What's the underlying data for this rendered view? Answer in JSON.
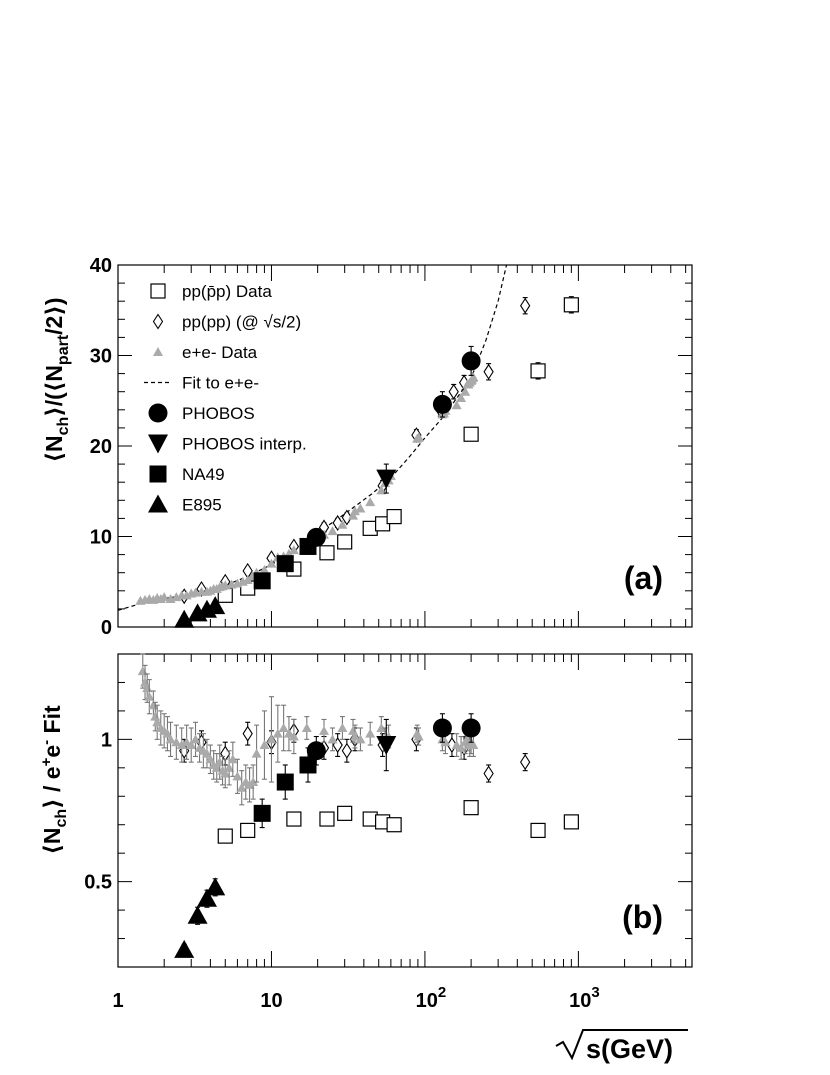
{
  "chart_data": [
    {
      "type": "scatter",
      "panel_label": "(a)",
      "x_scale": "log",
      "xlim": [
        1,
        5500
      ],
      "ylim": [
        0,
        40
      ],
      "yticks": [
        0,
        10,
        20,
        30,
        40
      ],
      "legend": {
        "placement": "top-left",
        "entries": [
          {
            "label": "pp(p̄p) Data",
            "marker": "open-square"
          },
          {
            "label": "pp(pp) (@ √s/2)",
            "marker": "open-diamond"
          },
          {
            "label": "e+e- Data",
            "marker": "gray-triangle"
          },
          {
            "label": "Fit to e+e-",
            "marker": "dashed-line"
          },
          {
            "label": "PHOBOS",
            "marker": "filled-circle"
          },
          {
            "label": "PHOBOS interp.",
            "marker": "filled-down-triangle"
          },
          {
            "label": "NA49",
            "marker": "filled-square"
          },
          {
            "label": "E895",
            "marker": "filled-triangle"
          }
        ]
      },
      "series": [
        {
          "name": "pp(p̄p) Data",
          "marker": "open-square",
          "x": [
            5.0,
            7.0,
            14.0,
            23.0,
            30.0,
            44.0,
            53.0,
            63.0,
            200.0,
            546.0,
            900.0
          ],
          "y": [
            3.5,
            4.3,
            6.4,
            8.2,
            9.4,
            10.9,
            11.4,
            12.2,
            21.3,
            28.3,
            35.6
          ],
          "err": [
            0.3,
            0.3,
            0.4,
            0.4,
            0.4,
            0.5,
            0.5,
            0.5,
            0.6,
            0.9,
            0.9
          ]
        },
        {
          "name": "pp(pp) (@ √s/2)",
          "marker": "open-diamond",
          "x": [
            2.7,
            3.5,
            5.0,
            7.0,
            10.0,
            14.0,
            19.0,
            22.0,
            27.0,
            31.0,
            53.0,
            88.0,
            126.0,
            154.0,
            180.0,
            260.0,
            450.0
          ],
          "y": [
            3.4,
            4.2,
            5.0,
            6.2,
            7.6,
            8.9,
            9.8,
            11.0,
            11.5,
            12.1,
            15.6,
            21.2,
            24.0,
            26.0,
            27.0,
            28.2,
            35.5
          ],
          "err": [
            0.3,
            0.3,
            0.3,
            0.4,
            0.4,
            0.4,
            0.4,
            0.5,
            0.5,
            0.5,
            0.6,
            0.6,
            0.7,
            0.8,
            0.8,
            0.9,
            0.9
          ]
        },
        {
          "name": "e+e- Data",
          "marker": "gray-triangle",
          "x": [
            1.4,
            1.5,
            1.6,
            1.7,
            1.8,
            1.9,
            2.0,
            2.2,
            2.4,
            2.6,
            2.8,
            3.0,
            3.2,
            3.5,
            3.8,
            4.0,
            4.2,
            4.4,
            4.6,
            4.8,
            5.0,
            5.5,
            6.0,
            6.5,
            7.0,
            7.5,
            8.0,
            9.0,
            10.0,
            11.0,
            12.0,
            13.0,
            14.0,
            17.0,
            22.0,
            25.0,
            29.0,
            34.0,
            35.0,
            38.0,
            44.0,
            52.0,
            55.0,
            58.0,
            60.0,
            89.0,
            91.0,
            91.2,
            130.0,
            133.0,
            136.0,
            161.0,
            172.0,
            183.0,
            189.0,
            192.0,
            196.0,
            200.0,
            202.0,
            205.0,
            207.0
          ],
          "y": [
            2.9,
            3.0,
            3.1,
            3.0,
            3.2,
            3.1,
            3.3,
            3.1,
            3.3,
            3.5,
            3.5,
            3.7,
            3.8,
            3.9,
            3.9,
            4.0,
            4.2,
            4.2,
            4.4,
            4.5,
            4.6,
            4.7,
            4.8,
            5.0,
            5.2,
            5.6,
            6.0,
            6.3,
            7.0,
            7.7,
            7.8,
            8.1,
            8.5,
            9.0,
            10.2,
            10.6,
            11.3,
            12.3,
            12.8,
            13.1,
            13.8,
            15.1,
            15.9,
            16.2,
            16.7,
            20.8,
            20.9,
            21.0,
            23.5,
            23.6,
            23.9,
            24.5,
            25.3,
            26.0,
            26.8,
            26.8,
            27.0,
            27.2,
            27.3,
            27.5,
            27.6
          ]
        },
        {
          "name": "PHOBOS",
          "marker": "filled-circle",
          "x": [
            19.6,
            130.0,
            200.0
          ],
          "y": [
            9.9,
            24.6,
            29.4
          ],
          "err": [
            0.6,
            1.4,
            1.6
          ]
        },
        {
          "name": "PHOBOS interp.",
          "marker": "filled-down-triangle",
          "x": [
            56.0
          ],
          "y": [
            16.4
          ],
          "err": [
            1.6
          ]
        },
        {
          "name": "NA49",
          "marker": "filled-square",
          "x": [
            8.7,
            12.3,
            17.3
          ],
          "y": [
            5.1,
            7.0,
            8.9
          ],
          "err": [
            0.4,
            0.5,
            0.6
          ]
        },
        {
          "name": "E895",
          "marker": "filled-triangle",
          "x": [
            2.7,
            3.3,
            3.8,
            4.3
          ],
          "y": [
            0.8,
            1.5,
            1.9,
            2.3
          ],
          "err": [
            0.1,
            0.15,
            0.2,
            0.2
          ]
        }
      ],
      "fit_line": {
        "name": "Fit to e+e-",
        "x": [
          1.0,
          1.25,
          1.5,
          2.0,
          3.0,
          4.0,
          5.0,
          7.0,
          10.0,
          14.0,
          20.0,
          30.0,
          45.0,
          60.0,
          80.0,
          100.0,
          130.0,
          160.0,
          200.0,
          250.0,
          300.0,
          340.0
        ],
        "y": [
          1.85,
          2.33,
          2.75,
          3.15,
          3.6,
          4.1,
          4.6,
          5.6,
          6.9,
          8.5,
          10.4,
          12.5,
          14.7,
          16.5,
          18.9,
          20.9,
          23.1,
          25.2,
          27.5,
          31.7,
          36.0,
          40.0
        ]
      }
    },
    {
      "type": "scatter",
      "panel_label": "(b)",
      "x_scale": "log",
      "xlim": [
        1,
        5500
      ],
      "ylim": [
        0.2,
        1.3
      ],
      "yticks": [
        0.5,
        1
      ],
      "xticks": [
        {
          "value": 1,
          "base": "1",
          "exp": ""
        },
        {
          "value": 10,
          "base": "10",
          "exp": ""
        },
        {
          "value": 100,
          "base": "10",
          "exp": "2"
        },
        {
          "value": 1000,
          "base": "10",
          "exp": "3"
        }
      ],
      "series": [
        {
          "name": "pp(p̄p) Data",
          "marker": "open-square",
          "x": [
            5.0,
            7.0,
            14.0,
            23.0,
            30.0,
            44.0,
            53.0,
            63.0,
            200.0,
            546.0,
            900.0
          ],
          "y": [
            0.66,
            0.68,
            0.72,
            0.72,
            0.74,
            0.72,
            0.71,
            0.7,
            0.76,
            0.68,
            0.71
          ]
        },
        {
          "name": "pp(pp) (@ √s/2)",
          "marker": "open-diamond",
          "x": [
            2.7,
            3.5,
            5.0,
            7.0,
            10.0,
            14.0,
            22.0,
            27.0,
            31.0,
            35.0,
            53.0,
            88.0,
            150.0,
            180.0,
            260.0,
            450.0
          ],
          "y": [
            0.96,
            0.99,
            0.95,
            1.02,
            0.99,
            1.03,
            0.97,
            0.98,
            0.96,
            1.0,
            0.98,
            1.0,
            0.98,
            0.97,
            0.88,
            0.92
          ],
          "err": [
            0.04,
            0.04,
            0.04,
            0.04,
            0.04,
            0.04,
            0.04,
            0.04,
            0.04,
            0.04,
            0.04,
            0.04,
            0.04,
            0.04,
            0.03,
            0.03
          ]
        },
        {
          "name": "e+e- Data",
          "marker": "gray-triangle",
          "x": [
            1.45,
            1.5,
            1.55,
            1.6,
            1.7,
            1.75,
            1.8,
            1.9,
            2.0,
            2.1,
            2.2,
            2.4,
            2.6,
            2.8,
            3.0,
            3.2,
            3.4,
            3.6,
            3.8,
            4.0,
            4.2,
            4.4,
            4.6,
            4.8,
            5.0,
            5.3,
            5.6,
            6.0,
            6.4,
            6.8,
            7.2,
            7.6,
            8.0,
            9.0,
            10.0,
            11.0,
            12.0,
            13.0,
            14.0,
            17.0,
            22.0,
            25.0,
            29.0,
            34.0,
            35.0,
            38.0,
            44.0,
            52.0,
            55.0,
            58.0,
            89.0,
            91.0,
            130.0,
            136.0,
            161.0,
            172.0,
            183.0,
            189.0,
            196.0,
            200.0,
            207.0
          ],
          "y": [
            1.24,
            1.2,
            1.18,
            1.15,
            1.12,
            1.08,
            1.06,
            1.04,
            1.03,
            1.02,
            1.0,
            0.99,
            0.98,
            0.99,
            0.98,
            1.0,
            0.97,
            0.96,
            0.95,
            0.93,
            0.91,
            0.9,
            0.92,
            0.89,
            0.88,
            0.9,
            0.93,
            0.87,
            0.83,
            0.85,
            0.84,
            0.85,
            0.95,
            0.98,
            1.0,
            1.02,
            1.04,
            1.02,
            1.01,
            1.04,
            1.03,
            1.0,
            1.04,
            1.03,
            1.01,
            1.0,
            1.02,
            1.04,
            1.0,
            1.01,
            1.02,
            1.01,
            1.0,
            0.99,
            0.98,
            0.97,
            0.99,
            1.0,
            0.98,
            0.99,
            0.98
          ],
          "err": [
            0.06,
            0.06,
            0.05,
            0.06,
            0.05,
            0.05,
            0.06,
            0.06,
            0.06,
            0.06,
            0.06,
            0.06,
            0.06,
            0.06,
            0.06,
            0.06,
            0.05,
            0.06,
            0.05,
            0.05,
            0.05,
            0.05,
            0.06,
            0.05,
            0.05,
            0.06,
            0.06,
            0.06,
            0.06,
            0.06,
            0.06,
            0.06,
            0.1,
            0.12,
            0.15,
            0.1,
            0.08,
            0.06,
            0.06,
            0.04,
            0.04,
            0.04,
            0.04,
            0.04,
            0.04,
            0.04,
            0.04,
            0.04,
            0.04,
            0.04,
            0.03,
            0.03,
            0.04,
            0.04,
            0.04,
            0.04,
            0.04,
            0.04,
            0.04,
            0.04,
            0.04
          ]
        },
        {
          "name": "PHOBOS",
          "marker": "filled-circle",
          "x": [
            19.6,
            130.0,
            200.0
          ],
          "y": [
            0.96,
            1.04,
            1.04
          ],
          "err": [
            0.05,
            0.05,
            0.05
          ]
        },
        {
          "name": "PHOBOS interp.",
          "marker": "filled-down-triangle",
          "x": [
            56.0
          ],
          "y": [
            0.98
          ],
          "err": [
            0.09
          ]
        },
        {
          "name": "NA49",
          "marker": "filled-square",
          "x": [
            8.7,
            12.3,
            17.3
          ],
          "y": [
            0.74,
            0.85,
            0.91
          ],
          "err": [
            0.05,
            0.06,
            0.06
          ]
        },
        {
          "name": "E895",
          "marker": "filled-triangle",
          "x": [
            2.7,
            3.3,
            3.8,
            4.3
          ],
          "y": [
            0.26,
            0.38,
            0.44,
            0.48
          ],
          "err": [
            0.02,
            0.03,
            0.03,
            0.03
          ]
        }
      ]
    }
  ]
}
